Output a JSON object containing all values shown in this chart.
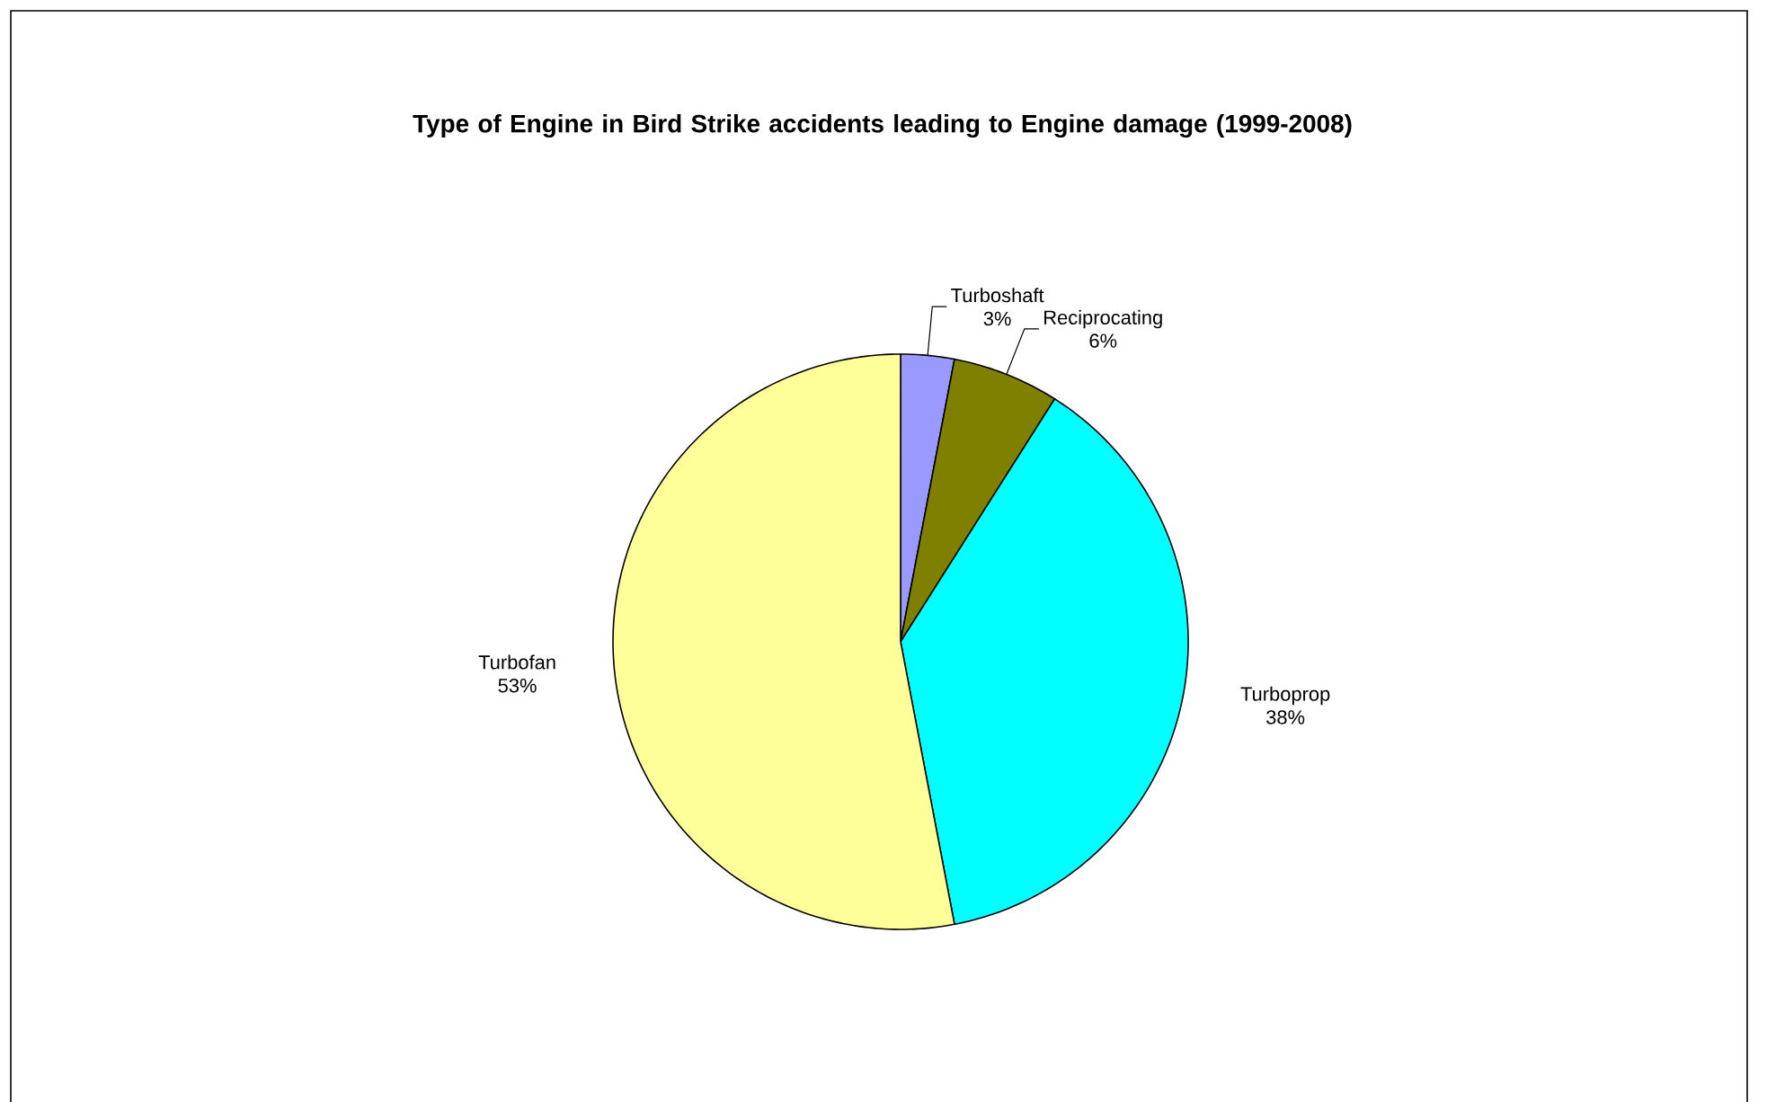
{
  "chart_data": {
    "type": "pie",
    "title": "Type of Engine in Bird Strike accidents leading to Engine damage (1999-2008)",
    "categories": [
      "Turboshaft",
      "Reciprocating",
      "Turboprop",
      "Turbofan"
    ],
    "values": [
      3,
      6,
      38,
      53
    ],
    "value_labels": [
      "3%",
      "6%",
      "38%",
      "53%"
    ],
    "colors": [
      "#9999ff",
      "#808000",
      "#00ffff",
      "#ffff99"
    ]
  }
}
